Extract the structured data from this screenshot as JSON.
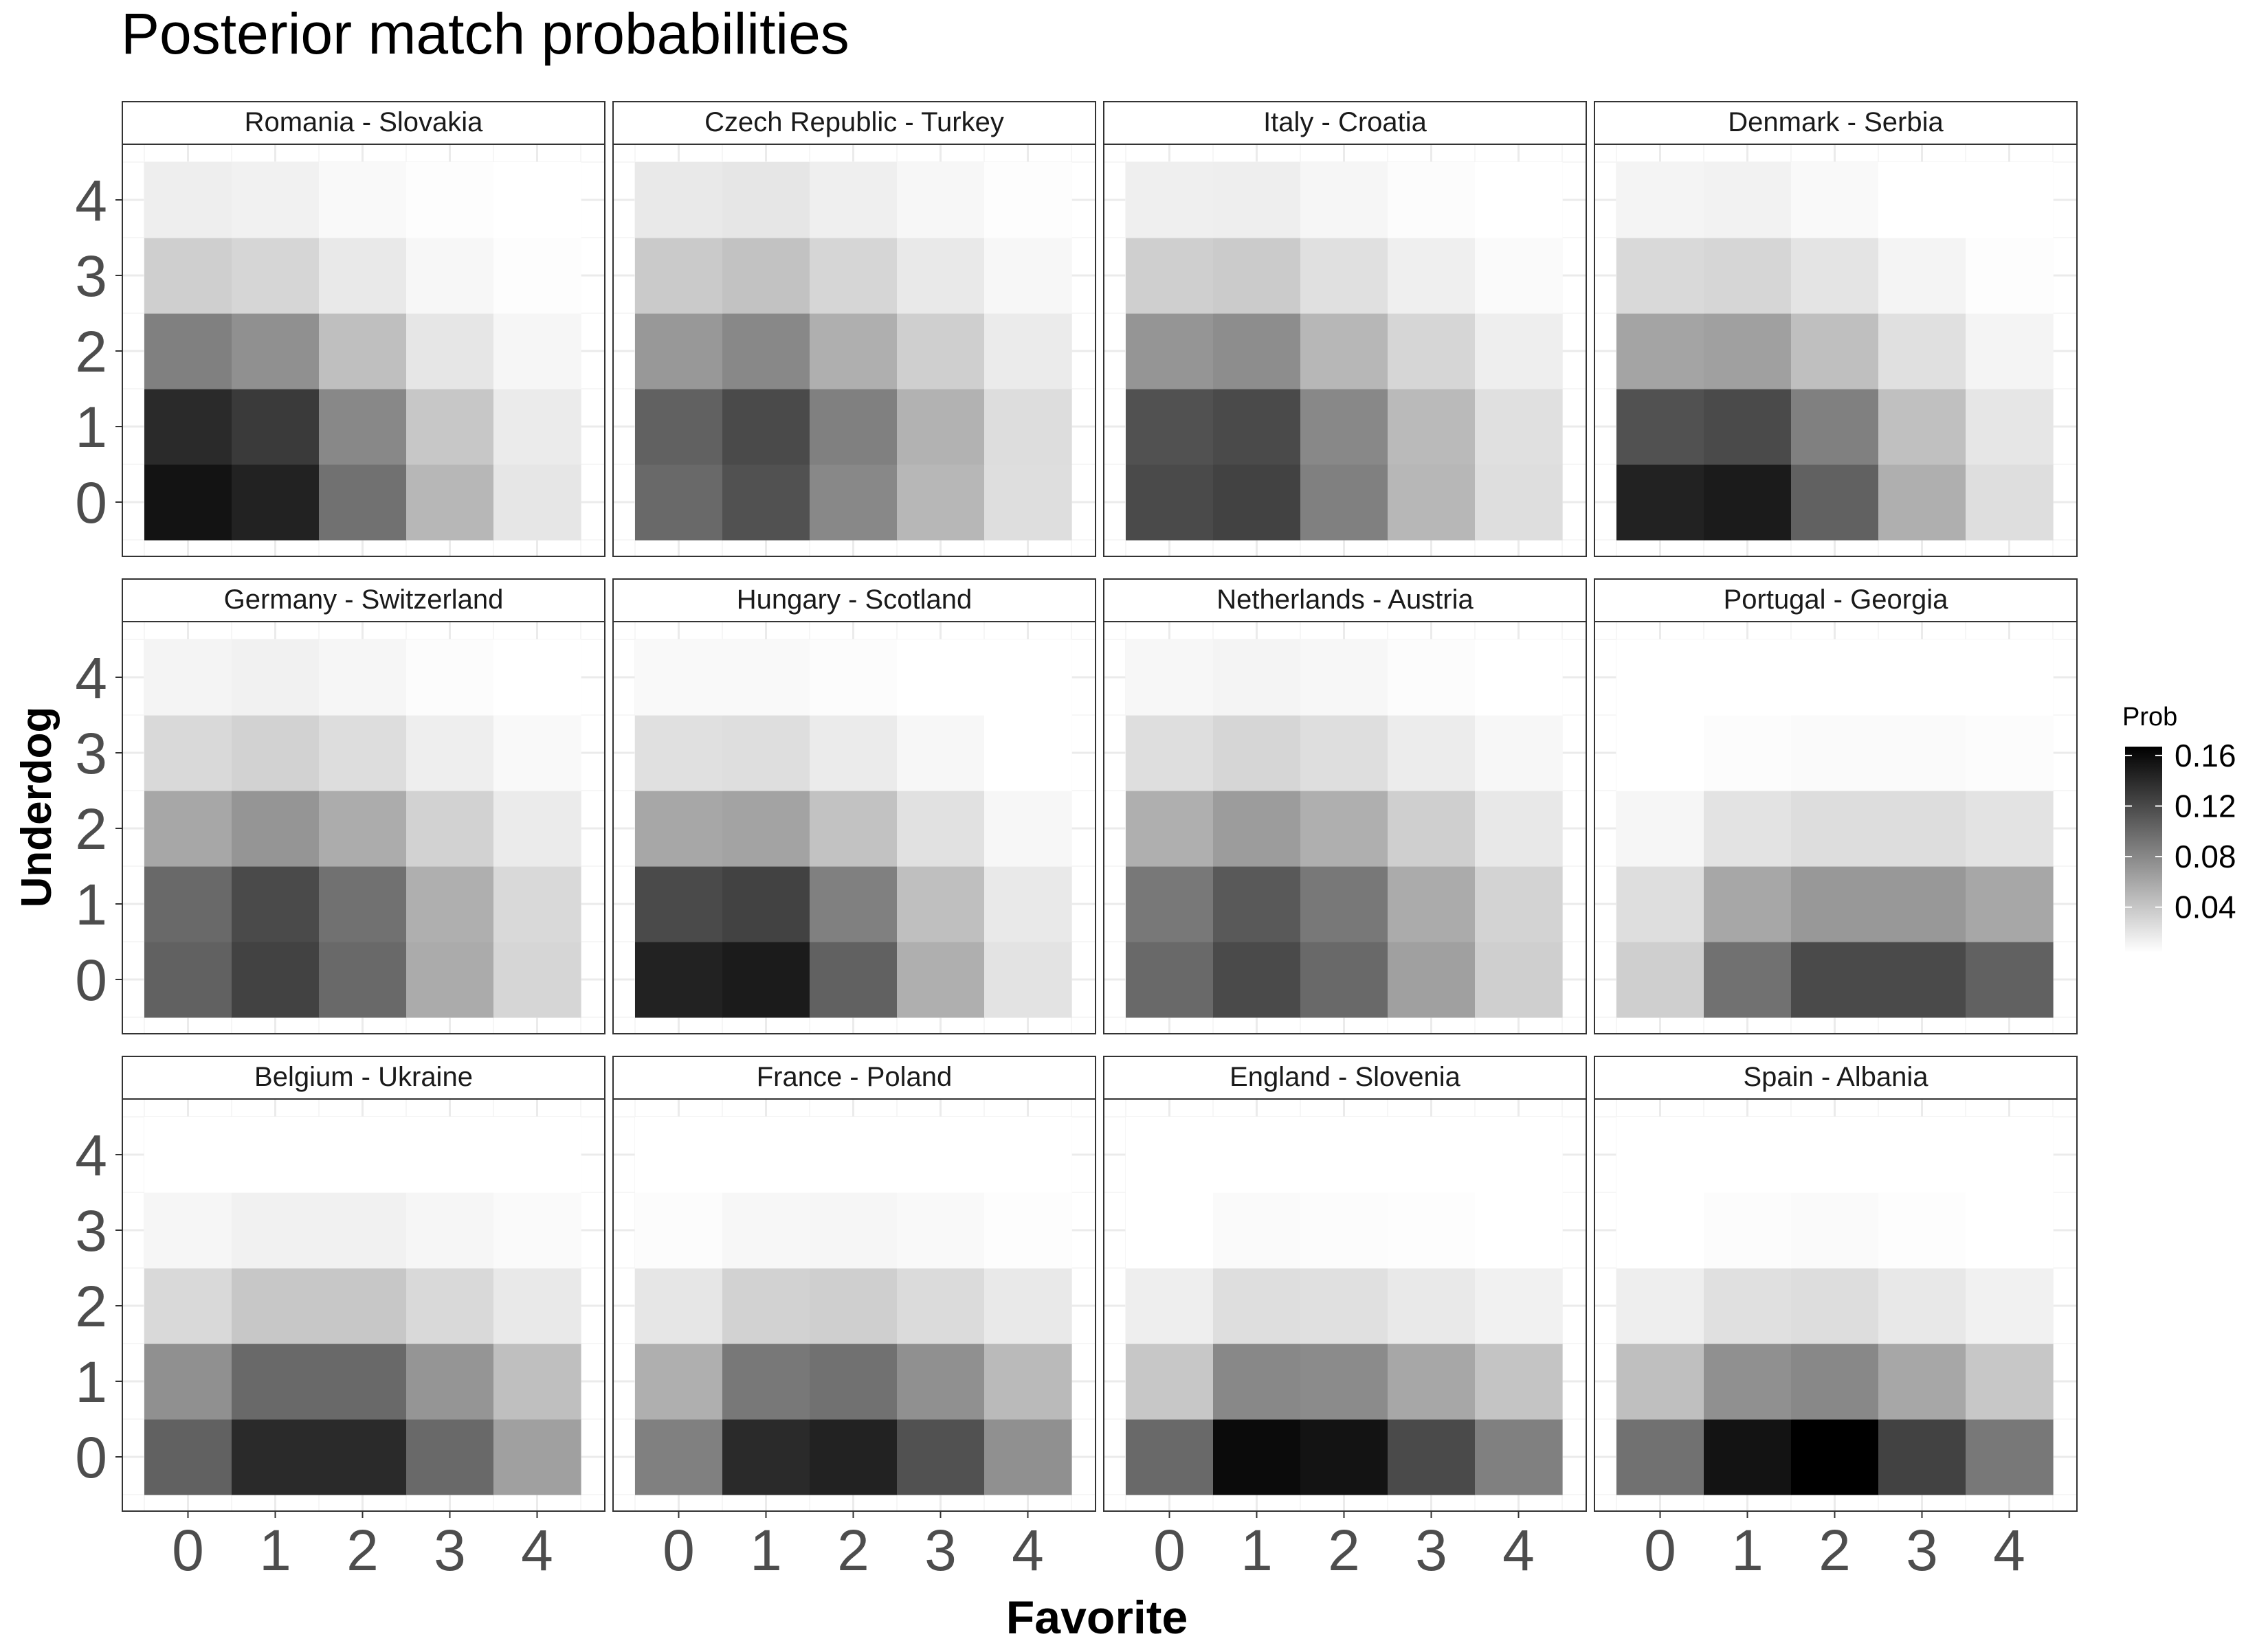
{
  "chart_data": {
    "type": "heatmap",
    "title": "Posterior match probabilities",
    "xlabel": "Favorite",
    "ylabel": "Underdog",
    "x_ticks": [
      "0",
      "1",
      "2",
      "3",
      "4"
    ],
    "y_ticks": [
      "0",
      "1",
      "2",
      "3",
      "4"
    ],
    "grid": true,
    "legend": {
      "title": "Prob",
      "position": "right",
      "ticks": [
        "0.04",
        "0.08",
        "0.12",
        "0.16"
      ],
      "tick_values": [
        0.04,
        0.08,
        0.12,
        0.16
      ],
      "min": 0.004,
      "max": 0.167,
      "low_color": "#ffffff",
      "high_color": "#000000"
    },
    "facet_rows": 3,
    "facet_cols": 4,
    "note": "values[underdog][favorite], rows = underdog goals 0..4, columns = favorite goals 0..4 (estimated from shading)",
    "facets": [
      {
        "name": "Romania - Slovakia",
        "values": [
          [
            0.155,
            0.145,
            0.095,
            0.05,
            0.02
          ],
          [
            0.14,
            0.13,
            0.08,
            0.04,
            0.017
          ],
          [
            0.085,
            0.075,
            0.045,
            0.02,
            0.01
          ],
          [
            0.035,
            0.03,
            0.018,
            0.009,
            0.005
          ],
          [
            0.015,
            0.013,
            0.008,
            0.005,
            0.003
          ]
        ]
      },
      {
        "name": "Czech Republic - Turkey",
        "values": [
          [
            0.1,
            0.115,
            0.08,
            0.05,
            0.025
          ],
          [
            0.105,
            0.12,
            0.085,
            0.053,
            0.026
          ],
          [
            0.07,
            0.08,
            0.055,
            0.035,
            0.017
          ],
          [
            0.038,
            0.043,
            0.03,
            0.018,
            0.009
          ],
          [
            0.018,
            0.02,
            0.014,
            0.009,
            0.005
          ]
        ]
      },
      {
        "name": "Italy - Croatia",
        "values": [
          [
            0.12,
            0.125,
            0.085,
            0.05,
            0.025
          ],
          [
            0.115,
            0.12,
            0.08,
            0.048,
            0.024
          ],
          [
            0.072,
            0.077,
            0.05,
            0.03,
            0.015
          ],
          [
            0.035,
            0.037,
            0.024,
            0.014,
            0.007
          ],
          [
            0.014,
            0.015,
            0.01,
            0.006,
            0.003
          ]
        ]
      },
      {
        "name": "Denmark - Serbia",
        "values": [
          [
            0.145,
            0.15,
            0.105,
            0.055,
            0.025
          ],
          [
            0.115,
            0.12,
            0.085,
            0.044,
            0.02
          ],
          [
            0.062,
            0.065,
            0.045,
            0.024,
            0.011
          ],
          [
            0.028,
            0.03,
            0.021,
            0.011,
            0.005
          ],
          [
            0.011,
            0.012,
            0.008,
            0.004,
            0.002
          ]
        ]
      },
      {
        "name": "Germany - Switzerland",
        "values": [
          [
            0.105,
            0.125,
            0.1,
            0.058,
            0.03
          ],
          [
            0.1,
            0.12,
            0.095,
            0.055,
            0.028
          ],
          [
            0.06,
            0.072,
            0.057,
            0.033,
            0.017
          ],
          [
            0.028,
            0.033,
            0.026,
            0.015,
            0.008
          ],
          [
            0.011,
            0.013,
            0.01,
            0.006,
            0.003
          ]
        ]
      },
      {
        "name": "Hungary - Scotland",
        "values": [
          [
            0.145,
            0.15,
            0.105,
            0.055,
            0.022
          ],
          [
            0.12,
            0.125,
            0.085,
            0.045,
            0.018
          ],
          [
            0.06,
            0.063,
            0.043,
            0.023,
            0.009
          ],
          [
            0.024,
            0.025,
            0.017,
            0.009,
            0.004
          ],
          [
            0.008,
            0.008,
            0.006,
            0.003,
            0.002
          ]
        ]
      },
      {
        "name": "Netherlands - Austria",
        "values": [
          [
            0.1,
            0.12,
            0.1,
            0.065,
            0.035
          ],
          [
            0.09,
            0.11,
            0.09,
            0.058,
            0.032
          ],
          [
            0.055,
            0.067,
            0.055,
            0.035,
            0.019
          ],
          [
            0.025,
            0.03,
            0.025,
            0.016,
            0.009
          ],
          [
            0.009,
            0.011,
            0.009,
            0.006,
            0.003
          ]
        ]
      },
      {
        "name": "Portugal - Georgia",
        "values": [
          [
            0.035,
            0.095,
            0.12,
            0.12,
            0.105
          ],
          [
            0.025,
            0.06,
            0.07,
            0.07,
            0.06
          ],
          [
            0.01,
            0.022,
            0.026,
            0.026,
            0.022
          ],
          [
            0.003,
            0.006,
            0.007,
            0.007,
            0.006
          ],
          [
            0.001,
            0.001,
            0.002,
            0.002,
            0.001
          ]
        ]
      },
      {
        "name": "Belgium - Ukraine",
        "values": [
          [
            0.105,
            0.14,
            0.14,
            0.1,
            0.065
          ],
          [
            0.075,
            0.1,
            0.1,
            0.072,
            0.045
          ],
          [
            0.028,
            0.04,
            0.04,
            0.028,
            0.018
          ],
          [
            0.01,
            0.013,
            0.013,
            0.01,
            0.007
          ],
          [
            0.004,
            0.004,
            0.004,
            0.003,
            0.002
          ]
        ]
      },
      {
        "name": "France - Poland",
        "values": [
          [
            0.085,
            0.14,
            0.145,
            0.115,
            0.075
          ],
          [
            0.055,
            0.09,
            0.095,
            0.075,
            0.048
          ],
          [
            0.02,
            0.033,
            0.035,
            0.027,
            0.018
          ],
          [
            0.006,
            0.009,
            0.01,
            0.008,
            0.005
          ],
          [
            0.002,
            0.002,
            0.002,
            0.002,
            0.001
          ]
        ]
      },
      {
        "name": "England - Slovenia",
        "values": [
          [
            0.1,
            0.16,
            0.155,
            0.12,
            0.085
          ],
          [
            0.04,
            0.08,
            0.078,
            0.06,
            0.042
          ],
          [
            0.015,
            0.025,
            0.024,
            0.018,
            0.013
          ],
          [
            0.004,
            0.007,
            0.006,
            0.005,
            0.003
          ],
          [
            0.001,
            0.001,
            0.001,
            0.001,
            0.001
          ]
        ]
      },
      {
        "name": "Spain - Albania",
        "values": [
          [
            0.095,
            0.155,
            0.167,
            0.125,
            0.09
          ],
          [
            0.045,
            0.075,
            0.08,
            0.06,
            0.04
          ],
          [
            0.015,
            0.024,
            0.026,
            0.019,
            0.013
          ],
          [
            0.004,
            0.006,
            0.007,
            0.005,
            0.003
          ],
          [
            0.001,
            0.001,
            0.001,
            0.001,
            0.001
          ]
        ]
      }
    ]
  }
}
